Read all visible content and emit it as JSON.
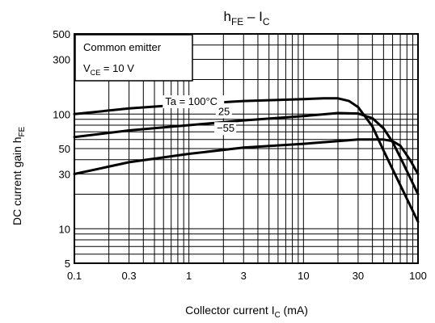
{
  "chart_data": {
    "type": "line",
    "title": {
      "main": "h",
      "main_sub": "FE",
      "sep": " – I",
      "tail_sub": "C"
    },
    "xlabel": {
      "text": "Collector current   I",
      "sub": "C",
      "unit": "   (mA)"
    },
    "ylabel": {
      "text": "DC current gain   h",
      "sub": "FE"
    },
    "x_scale": "log",
    "y_scale": "log",
    "xlim": [
      0.1,
      100
    ],
    "ylim": [
      5,
      500
    ],
    "x_ticks": [
      {
        "v": 0.1,
        "label": "0.1"
      },
      {
        "v": 0.3,
        "label": "0.3"
      },
      {
        "v": 1,
        "label": "1"
      },
      {
        "v": 3,
        "label": "3"
      },
      {
        "v": 10,
        "label": "10"
      },
      {
        "v": 30,
        "label": "30"
      },
      {
        "v": 100,
        "label": "100"
      }
    ],
    "y_ticks": [
      {
        "v": 5,
        "label": "5"
      },
      {
        "v": 10,
        "label": "10"
      },
      {
        "v": 30,
        "label": "30"
      },
      {
        "v": 50,
        "label": "50"
      },
      {
        "v": 100,
        "label": "100"
      },
      {
        "v": 300,
        "label": "300"
      },
      {
        "v": 500,
        "label": "500"
      }
    ],
    "grid": true,
    "legend_box": {
      "position": "top-left",
      "line1": "Common emitter",
      "line2_main": "V",
      "line2_sub": "CE",
      "line2_tail": " = 10 V"
    },
    "series": [
      {
        "name": "Ta = 100°C",
        "points": [
          [
            0.1,
            100
          ],
          [
            0.3,
            112
          ],
          [
            1,
            122
          ],
          [
            3,
            130
          ],
          [
            10,
            135
          ],
          [
            15,
            137
          ],
          [
            20,
            137
          ],
          [
            25,
            130
          ],
          [
            30,
            115
          ],
          [
            40,
            78
          ],
          [
            50,
            48
          ],
          [
            70,
            24
          ],
          [
            100,
            11.5
          ]
        ]
      },
      {
        "name": "25",
        "points": [
          [
            0.1,
            63
          ],
          [
            0.3,
            72
          ],
          [
            1,
            80
          ],
          [
            3,
            88
          ],
          [
            10,
            96
          ],
          [
            20,
            102
          ],
          [
            30,
            101
          ],
          [
            40,
            92
          ],
          [
            50,
            75
          ],
          [
            60,
            57
          ],
          [
            70,
            42
          ],
          [
            100,
            20
          ]
        ]
      },
      {
        "name": "−55",
        "points": [
          [
            0.1,
            30
          ],
          [
            0.3,
            38
          ],
          [
            1,
            45
          ],
          [
            3,
            51
          ],
          [
            10,
            55
          ],
          [
            20,
            58
          ],
          [
            30,
            60
          ],
          [
            40,
            60
          ],
          [
            50,
            60
          ],
          [
            60,
            58
          ],
          [
            70,
            53
          ],
          [
            85,
            40
          ],
          [
            100,
            30
          ]
        ]
      }
    ],
    "annotations": [
      {
        "text": "Ta = 100°C",
        "x": 0.62,
        "y": 120
      },
      {
        "text": "25",
        "x": 1.8,
        "y": 98
      },
      {
        "text": "−55",
        "x": 1.75,
        "y": 70
      }
    ]
  }
}
